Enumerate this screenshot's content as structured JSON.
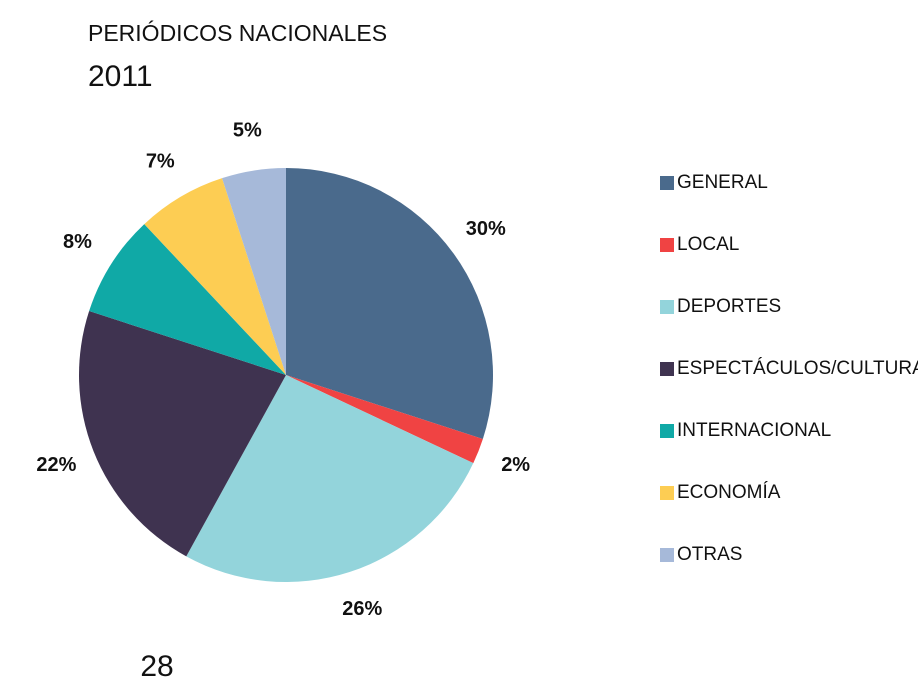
{
  "chart_data": {
    "type": "pie",
    "title": "PERIÓDICOS NACIONALES",
    "subtitle": "2011",
    "categories": [
      "GENERAL",
      "LOCAL",
      "DEPORTES",
      "ESPECTÁCULOS/CULTURA",
      "INTERNACIONAL",
      "ECONOMÍA",
      "OTRAS"
    ],
    "values": [
      30,
      2,
      26,
      22,
      8,
      7,
      5
    ],
    "value_labels": [
      "30%",
      "2%",
      "26%",
      "22%",
      "8%",
      "7%",
      "5%"
    ],
    "colors": [
      "#4a6a8c",
      "#f04343",
      "#93d4db",
      "#3f3350",
      "#10a9a6",
      "#fdcd53",
      "#a6b9d9"
    ],
    "legend": "right",
    "annotations": [
      "28"
    ]
  }
}
